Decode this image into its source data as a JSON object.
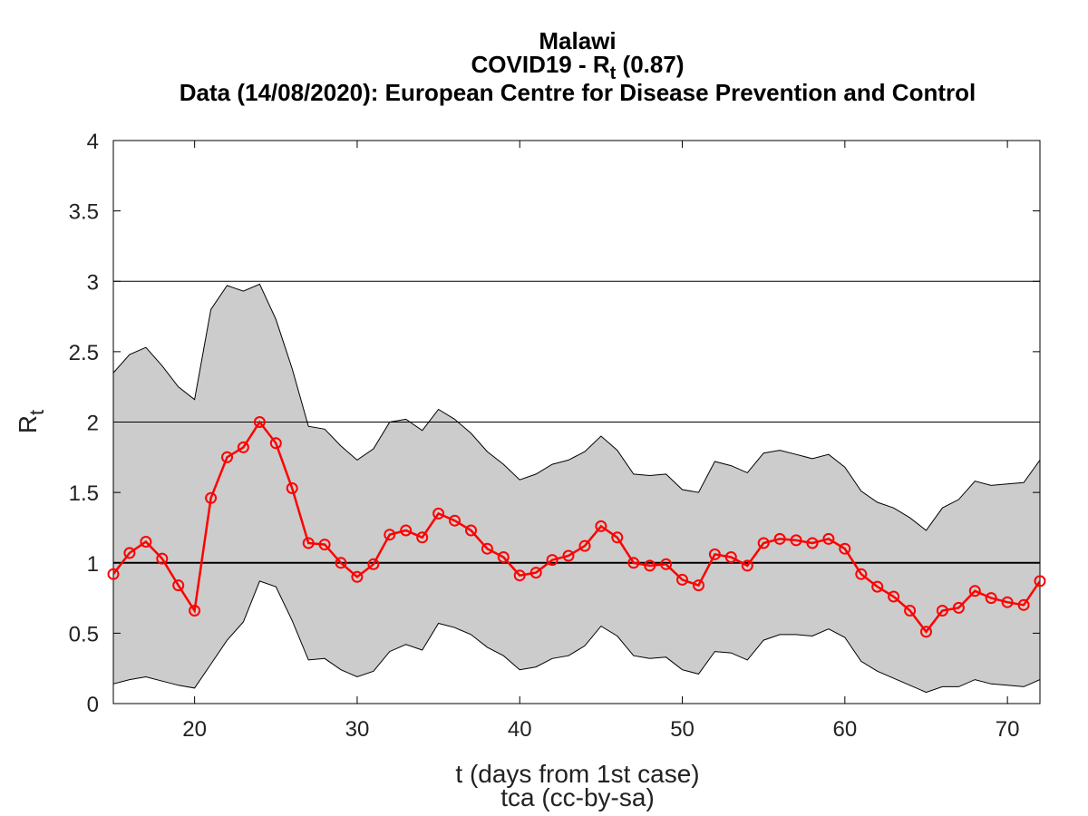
{
  "title": {
    "line1": "Malawi",
    "line2_prefix": "COVID19 - R",
    "line2_sub": "t",
    "line2_suffix": " (0.87)",
    "line3": "Data (14/08/2020): European Centre for Disease Prevention and Control"
  },
  "chart_data": {
    "type": "line",
    "xlabel": "t (days from 1st case)",
    "xlabel_note": "tca (cc-by-sa)",
    "ylabel_main": "R",
    "ylabel_sub": "t",
    "xlim": [
      15,
      72
    ],
    "ylim": [
      0,
      4
    ],
    "xticks": [
      20,
      30,
      40,
      50,
      60,
      70
    ],
    "yticks": [
      0,
      0.5,
      1,
      1.5,
      2,
      2.5,
      3,
      3.5,
      4
    ],
    "reference_lines": [
      1,
      2,
      3
    ],
    "grid": false,
    "x": [
      15,
      16,
      17,
      18,
      19,
      20,
      21,
      22,
      23,
      24,
      25,
      26,
      27,
      28,
      29,
      30,
      31,
      32,
      33,
      34,
      35,
      36,
      37,
      38,
      39,
      40,
      41,
      42,
      43,
      44,
      45,
      46,
      47,
      48,
      49,
      50,
      51,
      52,
      53,
      54,
      55,
      56,
      57,
      58,
      59,
      60,
      61,
      62,
      63,
      64,
      65,
      66,
      67,
      68,
      69,
      70,
      71,
      72
    ],
    "series": [
      {
        "values": [
          0.92,
          1.07,
          1.15,
          1.03,
          0.84,
          0.66,
          1.46,
          1.75,
          1.82,
          2.0,
          1.85,
          1.53,
          1.14,
          1.13,
          1.0,
          0.9,
          0.99,
          1.2,
          1.23,
          1.18,
          1.35,
          1.3,
          1.23,
          1.1,
          1.04,
          0.91,
          0.93,
          1.02,
          1.05,
          1.12,
          1.26,
          1.18,
          1.0,
          0.98,
          0.99,
          0.88,
          0.84,
          1.06,
          1.04,
          0.98,
          1.14,
          1.17,
          1.16,
          1.14,
          1.17,
          1.1,
          0.92,
          0.83,
          0.76,
          0.66,
          0.51,
          0.66,
          0.68,
          0.8,
          0.75,
          0.72,
          0.7,
          0.87
        ],
        "color": "#ff0000"
      }
    ],
    "band": {
      "upper": [
        2.35,
        2.48,
        2.53,
        2.4,
        2.25,
        2.16,
        2.8,
        2.97,
        2.93,
        2.98,
        2.73,
        2.38,
        1.97,
        1.95,
        1.83,
        1.73,
        1.81,
        2.0,
        2.02,
        1.94,
        2.09,
        2.02,
        1.92,
        1.79,
        1.7,
        1.59,
        1.63,
        1.7,
        1.73,
        1.79,
        1.9,
        1.8,
        1.63,
        1.62,
        1.63,
        1.52,
        1.5,
        1.72,
        1.69,
        1.64,
        1.78,
        1.8,
        1.77,
        1.74,
        1.77,
        1.68,
        1.51,
        1.43,
        1.39,
        1.32,
        1.23,
        1.39,
        1.45,
        1.58,
        1.55,
        1.56,
        1.57,
        1.73
      ],
      "lower": [
        0.14,
        0.17,
        0.19,
        0.16,
        0.13,
        0.11,
        0.28,
        0.45,
        0.58,
        0.87,
        0.83,
        0.59,
        0.31,
        0.32,
        0.24,
        0.19,
        0.23,
        0.37,
        0.42,
        0.38,
        0.57,
        0.54,
        0.49,
        0.4,
        0.34,
        0.24,
        0.26,
        0.32,
        0.34,
        0.41,
        0.55,
        0.48,
        0.34,
        0.32,
        0.33,
        0.24,
        0.21,
        0.37,
        0.36,
        0.31,
        0.45,
        0.49,
        0.49,
        0.48,
        0.53,
        0.47,
        0.3,
        0.23,
        0.18,
        0.13,
        0.08,
        0.12,
        0.12,
        0.17,
        0.14,
        0.13,
        0.12,
        0.17
      ],
      "fill": "#cccccc"
    }
  }
}
